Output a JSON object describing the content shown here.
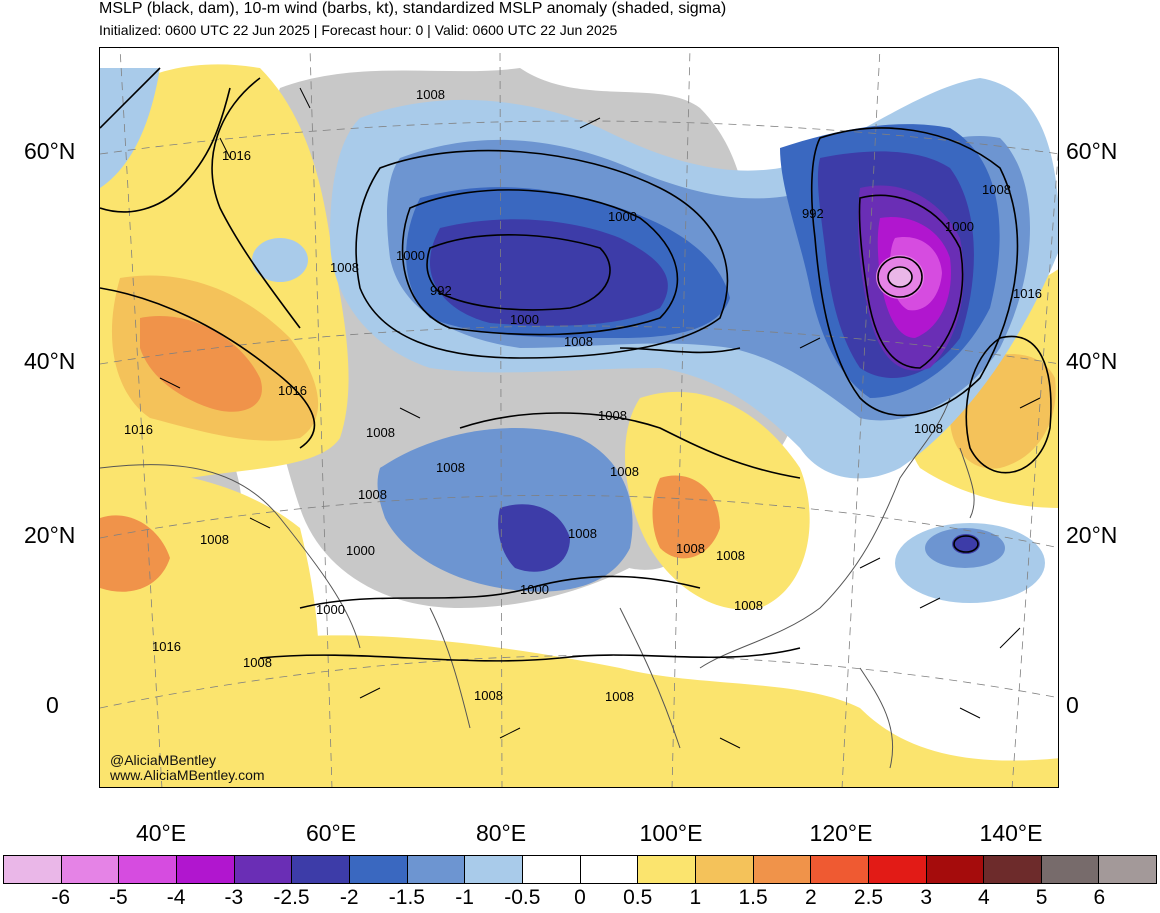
{
  "header": {
    "title": "MSLP (black, dam), 10-m wind (barbs, kt), standardized MSLP anomaly (shaded, sigma)",
    "subtitle": "Initialized: 0600 UTC 22 Jun 2025 | Forecast hour: 0 | Valid: 0600 UTC 22 Jun 2025"
  },
  "map": {
    "region": "Asia",
    "lat_labels_left": [
      "60°N",
      "40°N",
      "20°N",
      "0"
    ],
    "lat_labels_right": [
      "60°N",
      "40°N",
      "20°N",
      "0"
    ],
    "lon_labels": [
      "40°E",
      "60°E",
      "80°E",
      "100°E",
      "120°E",
      "140°E"
    ],
    "contour_labels": [
      "1008",
      "1016",
      "1000",
      "992",
      "1008",
      "1000",
      "1016",
      "1008",
      "1016",
      "1008",
      "1008",
      "1008",
      "1008",
      "1008",
      "1008",
      "1000",
      "1000",
      "1000",
      "1008",
      "1008",
      "1016",
      "1008",
      "1008",
      "1008",
      "992",
      "1000",
      "1008",
      "1016",
      "1008",
      "1000",
      "1008",
      "1008"
    ],
    "credits": [
      "@AliciaMBentley",
      "www.AliciaMBentley.com"
    ]
  },
  "colorbar": {
    "labels": [
      "-6",
      "-5",
      "-4",
      "-3",
      "-2.5",
      "-2",
      "-1.5",
      "-1",
      "-0.5",
      "0",
      "0.5",
      "1",
      "1.5",
      "2",
      "2.5",
      "3",
      "4",
      "5",
      "6"
    ],
    "colors": [
      "#eab7e8",
      "#e583e6",
      "#d64ce0",
      "#b116cf",
      "#6a2eb5",
      "#3d3ca8",
      "#3a68c0",
      "#6d95d1",
      "#a9cbea",
      "#ffffff",
      "#ffffff",
      "#fbe46e",
      "#f4c25a",
      "#f0934a",
      "#ef5a32",
      "#e21b16",
      "#a50c0c",
      "#6d2b2b",
      "#776b6b",
      "#a39999"
    ]
  },
  "colors": {
    "land_gray": "#c8c8c8",
    "contour": "#000000",
    "grid": "#808080"
  }
}
